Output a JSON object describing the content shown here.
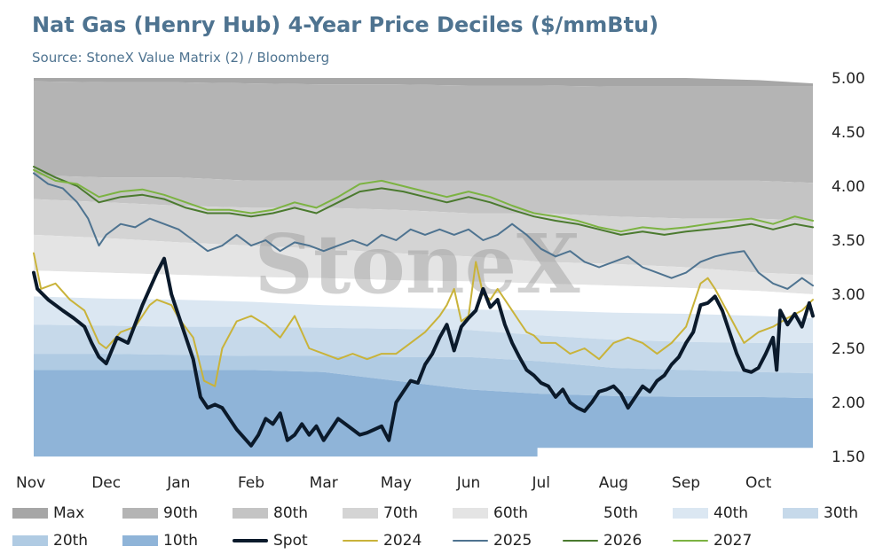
{
  "chart_data": {
    "type": "area",
    "title": "Nat Gas (Henry Hub) 4-Year Price Deciles ($/mmBtu)",
    "subtitle": "Source: StoneX Value Matrix (2) / Bloomberg",
    "watermark": "StoneX",
    "ylabel": "",
    "xlabel": "",
    "ylim": [
      1.5,
      5.0
    ],
    "yticks": [
      "5.00",
      "4.50",
      "4.00",
      "3.50",
      "3.00",
      "2.50",
      "2.00",
      "1.50"
    ],
    "ytick_values": [
      5.0,
      4.5,
      4.0,
      3.5,
      3.0,
      2.5,
      2.0,
      1.5
    ],
    "xticks": [
      "Nov",
      "Dec",
      "Jan",
      "Feb",
      "Mar",
      "May",
      "Jun",
      "Jul",
      "Aug",
      "Sep",
      "Oct"
    ],
    "xtick_positions": [
      0,
      1,
      2,
      3,
      4,
      5,
      6,
      7,
      8,
      9,
      10
    ],
    "xlim": [
      0,
      10.75
    ],
    "y_axis_position": "right",
    "grid": false,
    "legend_position": "bottom",
    "band_x": [
      0,
      1,
      2,
      3,
      4,
      5,
      6,
      7,
      8,
      9,
      10,
      10.75
    ],
    "bands": [
      {
        "name": "Max",
        "color": "#a6a6a6",
        "values": [
          5.0,
          5.0,
          5.0,
          5.0,
          5.0,
          5.0,
          5.0,
          5.0,
          5.0,
          5.0,
          4.98,
          4.95
        ]
      },
      {
        "name": "90th",
        "color": "#b4b4b4",
        "values": [
          4.97,
          4.96,
          4.96,
          4.95,
          4.94,
          4.94,
          4.93,
          4.93,
          4.92,
          4.92,
          4.92,
          4.92
        ]
      },
      {
        "name": "80th",
        "color": "#c4c4c4",
        "values": [
          4.1,
          4.08,
          4.08,
          4.05,
          4.05,
          4.05,
          4.05,
          4.05,
          4.05,
          4.05,
          4.05,
          4.03
        ]
      },
      {
        "name": "70th",
        "color": "#d4d4d4",
        "values": [
          3.88,
          3.85,
          3.82,
          3.8,
          3.8,
          3.78,
          3.75,
          3.75,
          3.72,
          3.7,
          3.7,
          3.68
        ]
      },
      {
        "name": "60th",
        "color": "#e4e4e4",
        "values": [
          3.55,
          3.52,
          3.48,
          3.45,
          3.42,
          3.38,
          3.35,
          3.3,
          3.28,
          3.25,
          3.2,
          3.18
        ]
      },
      {
        "name": "50th",
        "color": "#ffffff",
        "values": [
          3.22,
          3.2,
          3.18,
          3.16,
          3.15,
          3.13,
          3.12,
          3.1,
          3.08,
          3.06,
          3.03,
          3.0
        ]
      },
      {
        "name": "40th",
        "color": "#dbe7f2",
        "values": [
          2.98,
          2.96,
          2.95,
          2.93,
          2.9,
          2.88,
          2.86,
          2.85,
          2.83,
          2.82,
          2.8,
          2.78
        ]
      },
      {
        "name": "30th",
        "color": "#c6d9ea",
        "values": [
          2.72,
          2.71,
          2.7,
          2.7,
          2.69,
          2.68,
          2.67,
          2.62,
          2.58,
          2.56,
          2.55,
          2.55
        ]
      },
      {
        "name": "20th",
        "color": "#b0cbe3",
        "values": [
          2.45,
          2.45,
          2.44,
          2.43,
          2.43,
          2.42,
          2.42,
          2.38,
          2.32,
          2.3,
          2.28,
          2.27
        ]
      },
      {
        "name": "10th",
        "color": "#8fb4d8",
        "values": [
          2.3,
          2.3,
          2.3,
          2.3,
          2.28,
          2.2,
          2.12,
          2.08,
          2.06,
          2.05,
          2.05,
          2.04
        ]
      }
    ],
    "band_min_x": [
      0,
      6.95,
      6.95,
      10.75
    ],
    "band_min": [
      1.5,
      1.5,
      1.58,
      1.58
    ],
    "series": [
      {
        "name": "Spot",
        "color": "#0b1a2b",
        "width": 4,
        "x": [
          0,
          0.05,
          0.2,
          0.4,
          0.55,
          0.7,
          0.8,
          0.9,
          1.0,
          1.15,
          1.3,
          1.5,
          1.7,
          1.8,
          1.9,
          2.1,
          2.2,
          2.3,
          2.4,
          2.5,
          2.6,
          2.7,
          2.8,
          3.0,
          3.1,
          3.2,
          3.3,
          3.4,
          3.5,
          3.6,
          3.7,
          3.8,
          3.9,
          4.0,
          4.1,
          4.2,
          4.3,
          4.4,
          4.5,
          4.6,
          4.7,
          4.8,
          4.9,
          5.0,
          5.1,
          5.2,
          5.3,
          5.4,
          5.5,
          5.6,
          5.7,
          5.8,
          5.9,
          6.0,
          6.1,
          6.2,
          6.3,
          6.4,
          6.5,
          6.6,
          6.7,
          6.8,
          6.9,
          7.0,
          7.1,
          7.2,
          7.3,
          7.4,
          7.5,
          7.6,
          7.7,
          7.8,
          7.9,
          8.0,
          8.1,
          8.2,
          8.3,
          8.4,
          8.5,
          8.6,
          8.7,
          8.8,
          8.9,
          9.0,
          9.1,
          9.2,
          9.3,
          9.4,
          9.5,
          9.6,
          9.7,
          9.8,
          9.9,
          10.0,
          10.1,
          10.2,
          10.25,
          10.3,
          10.4,
          10.5,
          10.6,
          10.7,
          10.75
        ],
        "y": [
          3.2,
          3.05,
          2.95,
          2.85,
          2.78,
          2.7,
          2.55,
          2.42,
          2.36,
          2.6,
          2.55,
          2.9,
          3.2,
          3.33,
          3.0,
          2.6,
          2.4,
          2.05,
          1.95,
          1.98,
          1.95,
          1.85,
          1.75,
          1.6,
          1.7,
          1.85,
          1.8,
          1.9,
          1.65,
          1.7,
          1.8,
          1.7,
          1.78,
          1.65,
          1.75,
          1.85,
          1.8,
          1.75,
          1.7,
          1.72,
          1.75,
          1.78,
          1.65,
          2.0,
          2.1,
          2.2,
          2.18,
          2.35,
          2.45,
          2.6,
          2.72,
          2.48,
          2.7,
          2.78,
          2.85,
          3.05,
          2.88,
          2.95,
          2.72,
          2.55,
          2.42,
          2.3,
          2.25,
          2.18,
          2.15,
          2.05,
          2.12,
          2.0,
          1.95,
          1.92,
          2.0,
          2.1,
          2.12,
          2.15,
          2.08,
          1.95,
          2.05,
          2.15,
          2.1,
          2.2,
          2.25,
          2.35,
          2.42,
          2.55,
          2.65,
          2.9,
          2.92,
          2.98,
          2.85,
          2.65,
          2.45,
          2.3,
          2.28,
          2.32,
          2.45,
          2.6,
          2.3,
          2.85,
          2.72,
          2.82,
          2.7,
          2.92,
          2.8
        ]
      },
      {
        "name": "2024",
        "color": "#c9b33a",
        "width": 2,
        "x": [
          0,
          0.1,
          0.3,
          0.5,
          0.7,
          0.9,
          1.0,
          1.2,
          1.4,
          1.6,
          1.7,
          1.9,
          2.0,
          2.2,
          2.35,
          2.5,
          2.6,
          2.8,
          3.0,
          3.2,
          3.4,
          3.6,
          3.8,
          4.0,
          4.2,
          4.4,
          4.6,
          4.8,
          5.0,
          5.2,
          5.4,
          5.6,
          5.7,
          5.8,
          5.9,
          6.0,
          6.1,
          6.2,
          6.3,
          6.4,
          6.5,
          6.6,
          6.7,
          6.8,
          6.9,
          7.0,
          7.2,
          7.4,
          7.6,
          7.8,
          8.0,
          8.2,
          8.4,
          8.6,
          8.8,
          9.0,
          9.2,
          9.3,
          9.4,
          9.6,
          9.8,
          10.0,
          10.2,
          10.4,
          10.6,
          10.75
        ],
        "y": [
          3.38,
          3.05,
          3.1,
          2.95,
          2.85,
          2.55,
          2.5,
          2.65,
          2.7,
          2.9,
          2.95,
          2.9,
          2.78,
          2.6,
          2.2,
          2.15,
          2.5,
          2.75,
          2.8,
          2.72,
          2.6,
          2.8,
          2.5,
          2.45,
          2.4,
          2.45,
          2.4,
          2.45,
          2.45,
          2.55,
          2.65,
          2.8,
          2.9,
          3.05,
          2.75,
          2.8,
          3.3,
          3.0,
          2.95,
          3.05,
          2.95,
          2.85,
          2.75,
          2.65,
          2.62,
          2.55,
          2.55,
          2.45,
          2.5,
          2.4,
          2.55,
          2.6,
          2.55,
          2.45,
          2.55,
          2.7,
          3.1,
          3.15,
          3.05,
          2.8,
          2.55,
          2.65,
          2.7,
          2.78,
          2.85,
          2.95
        ]
      },
      {
        "name": "2025",
        "color": "#4e7390",
        "width": 2,
        "x": [
          0,
          0.2,
          0.4,
          0.6,
          0.75,
          0.9,
          1.0,
          1.2,
          1.4,
          1.6,
          1.8,
          2.0,
          2.2,
          2.4,
          2.6,
          2.8,
          3.0,
          3.2,
          3.4,
          3.6,
          3.8,
          4.0,
          4.2,
          4.4,
          4.6,
          4.8,
          5.0,
          5.2,
          5.4,
          5.6,
          5.8,
          6.0,
          6.2,
          6.4,
          6.6,
          6.8,
          7.0,
          7.2,
          7.4,
          7.6,
          7.8,
          8.0,
          8.2,
          8.4,
          8.6,
          8.8,
          9.0,
          9.2,
          9.4,
          9.6,
          9.8,
          10.0,
          10.2,
          10.4,
          10.6,
          10.75
        ],
        "y": [
          4.12,
          4.02,
          3.98,
          3.85,
          3.7,
          3.45,
          3.55,
          3.65,
          3.62,
          3.7,
          3.65,
          3.6,
          3.5,
          3.4,
          3.45,
          3.55,
          3.45,
          3.5,
          3.4,
          3.48,
          3.45,
          3.4,
          3.45,
          3.5,
          3.45,
          3.55,
          3.5,
          3.6,
          3.55,
          3.6,
          3.55,
          3.6,
          3.5,
          3.55,
          3.65,
          3.55,
          3.42,
          3.35,
          3.4,
          3.3,
          3.25,
          3.3,
          3.35,
          3.25,
          3.2,
          3.15,
          3.2,
          3.3,
          3.35,
          3.38,
          3.4,
          3.2,
          3.1,
          3.05,
          3.15,
          3.08
        ]
      },
      {
        "name": "2026",
        "color": "#4b7a2f",
        "width": 2,
        "x": [
          0,
          0.3,
          0.6,
          0.9,
          1.2,
          1.5,
          1.8,
          2.1,
          2.4,
          2.7,
          3.0,
          3.3,
          3.6,
          3.9,
          4.2,
          4.5,
          4.8,
          5.1,
          5.4,
          5.7,
          6.0,
          6.3,
          6.6,
          6.9,
          7.2,
          7.5,
          7.8,
          8.1,
          8.4,
          8.7,
          9.0,
          9.3,
          9.6,
          9.9,
          10.2,
          10.5,
          10.75
        ],
        "y": [
          4.18,
          4.08,
          4.0,
          3.85,
          3.9,
          3.92,
          3.88,
          3.8,
          3.75,
          3.75,
          3.72,
          3.75,
          3.8,
          3.75,
          3.85,
          3.95,
          3.98,
          3.95,
          3.9,
          3.85,
          3.9,
          3.85,
          3.78,
          3.72,
          3.68,
          3.65,
          3.6,
          3.55,
          3.58,
          3.55,
          3.58,
          3.6,
          3.62,
          3.65,
          3.6,
          3.65,
          3.62
        ]
      },
      {
        "name": "2027",
        "color": "#7cb342",
        "width": 2,
        "x": [
          0,
          0.3,
          0.6,
          0.9,
          1.2,
          1.5,
          1.8,
          2.1,
          2.4,
          2.7,
          3.0,
          3.3,
          3.6,
          3.9,
          4.2,
          4.5,
          4.8,
          5.1,
          5.4,
          5.7,
          6.0,
          6.3,
          6.6,
          6.9,
          7.2,
          7.5,
          7.8,
          8.1,
          8.4,
          8.7,
          9.0,
          9.3,
          9.6,
          9.9,
          10.2,
          10.5,
          10.75
        ],
        "y": [
          4.15,
          4.05,
          4.02,
          3.9,
          3.95,
          3.97,
          3.92,
          3.85,
          3.78,
          3.78,
          3.75,
          3.78,
          3.85,
          3.8,
          3.9,
          4.02,
          4.05,
          4.0,
          3.95,
          3.9,
          3.95,
          3.9,
          3.82,
          3.75,
          3.72,
          3.68,
          3.62,
          3.58,
          3.62,
          3.6,
          3.62,
          3.65,
          3.68,
          3.7,
          3.65,
          3.72,
          3.68
        ]
      }
    ],
    "legend": [
      {
        "label": "Max",
        "kind": "swatch",
        "color": "#a6a6a6"
      },
      {
        "label": "90th",
        "kind": "swatch",
        "color": "#b4b4b4"
      },
      {
        "label": "80th",
        "kind": "swatch",
        "color": "#c4c4c4"
      },
      {
        "label": "70th",
        "kind": "swatch",
        "color": "#d4d4d4"
      },
      {
        "label": "60th",
        "kind": "swatch",
        "color": "#e4e4e4"
      },
      {
        "label": "50th",
        "kind": "swatch",
        "color": "#ffffff"
      },
      {
        "label": "40th",
        "kind": "swatch",
        "color": "#dbe7f2"
      },
      {
        "label": "30th",
        "kind": "swatch",
        "color": "#c6d9ea"
      },
      {
        "label": "20th",
        "kind": "swatch",
        "color": "#b0cbe3"
      },
      {
        "label": "10th",
        "kind": "swatch",
        "color": "#8fb4d8"
      },
      {
        "label": "Spot",
        "kind": "line",
        "color": "#0b1a2b",
        "width": 4
      },
      {
        "label": "2024",
        "kind": "line",
        "color": "#c9b33a",
        "width": 2
      },
      {
        "label": "2025",
        "kind": "line",
        "color": "#4e7390",
        "width": 2
      },
      {
        "label": "2026",
        "kind": "line",
        "color": "#4b7a2f",
        "width": 2
      },
      {
        "label": "2027",
        "kind": "line",
        "color": "#7cb342",
        "width": 2
      }
    ]
  }
}
